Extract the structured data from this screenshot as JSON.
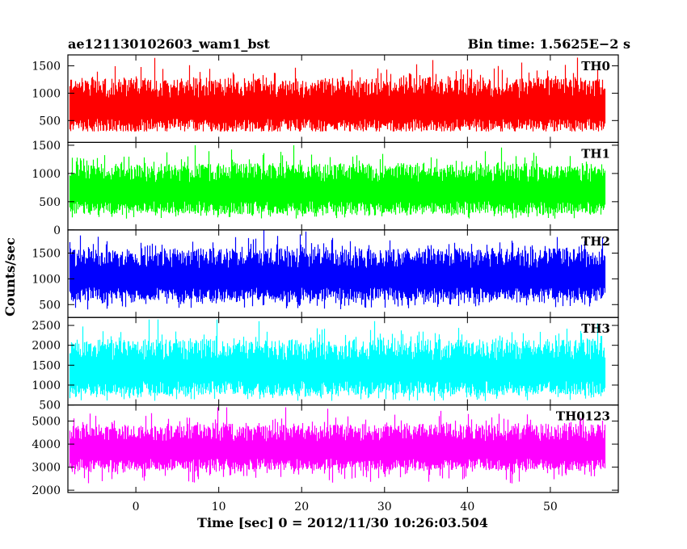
{
  "header": {
    "title": "ae121130102603_wam1_bst",
    "bin_time": "Bin time: 1.5625E−2 s"
  },
  "chart_data": {
    "type": "line",
    "style": "stacked light curves (binned, noisy)",
    "xlabel": "Time [sec] 0 = 2012/11/30 10:26:03.504",
    "ylabel": "Counts/sec",
    "xlim": [
      -8.2,
      58.2
    ],
    "x_ticks": [
      0,
      10,
      20,
      30,
      40,
      50
    ],
    "x_tick_labels": [
      "0",
      "10",
      "20",
      "30",
      "40",
      "50"
    ],
    "data_x_range": [
      -8.0,
      56.5
    ],
    "grid": false,
    "panels": [
      {
        "name": "TH0",
        "color": "#ff0000",
        "ylim": [
          100,
          1700
        ],
        "yticks": [
          500,
          1000,
          1500
        ],
        "ytick_labels": [
          "500",
          "1000",
          "1500"
        ],
        "baseline_low": 300,
        "mean": 750,
        "peak_max": 1650
      },
      {
        "name": "TH1",
        "color": "#00ff00",
        "ylim": [
          0,
          1550
        ],
        "yticks": [
          0,
          500,
          1000,
          1500
        ],
        "ytick_labels": [
          "0",
          "500",
          "1000",
          "1500"
        ],
        "baseline_low": 200,
        "mean": 700,
        "peak_max": 1500
      },
      {
        "name": "TH2",
        "color": "#0000ff",
        "ylim": [
          250,
          1950
        ],
        "yticks": [
          500,
          1000,
          1500
        ],
        "ytick_labels": [
          "500",
          "1000",
          "1500"
        ],
        "baseline_low": 400,
        "mean": 1050,
        "peak_max": 1950
      },
      {
        "name": "TH3",
        "color": "#00ffff",
        "ylim": [
          500,
          2700
        ],
        "yticks": [
          500,
          1000,
          1500,
          2000,
          2500
        ],
        "ytick_labels": [
          "500",
          "1000",
          "1500",
          "2000",
          "2500"
        ],
        "baseline_low": 600,
        "mean": 1400,
        "peak_max": 2650
      },
      {
        "name": "TH0123",
        "color": "#ff00ff",
        "ylim": [
          1900,
          5700
        ],
        "yticks": [
          2000,
          3000,
          4000,
          5000
        ],
        "ytick_labels": [
          "2000",
          "3000",
          "4000",
          "5000"
        ],
        "baseline_low": 2200,
        "mean": 3800,
        "peak_max": 5600
      }
    ]
  }
}
